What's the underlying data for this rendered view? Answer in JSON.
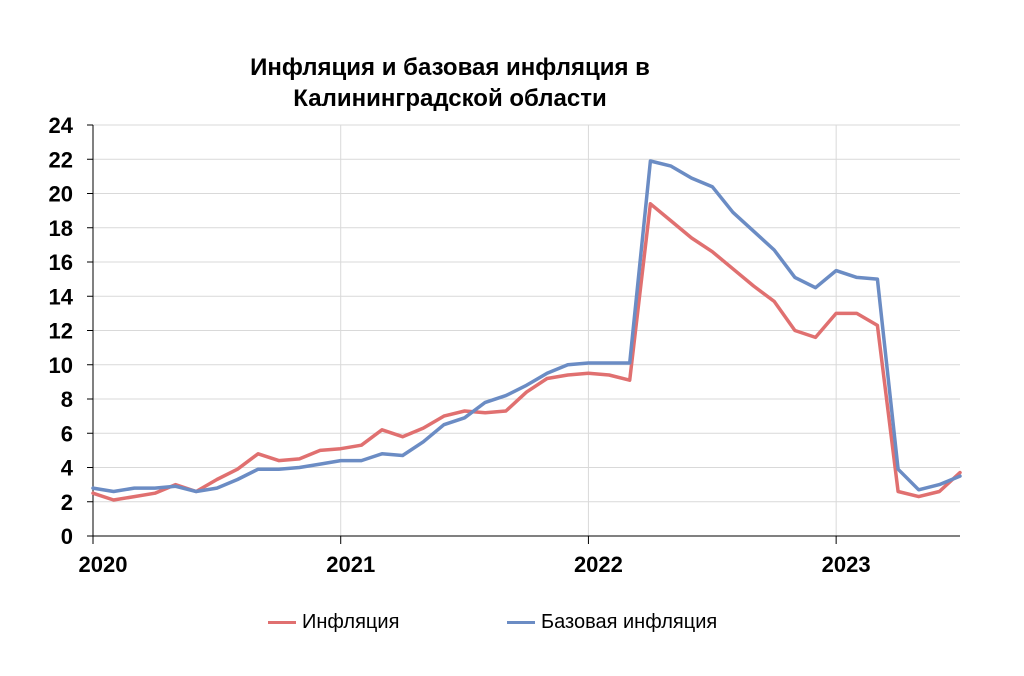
{
  "chart_data": {
    "type": "line",
    "title_lines": [
      "Инфляция и базовая инфляция в",
      "Калининградской области"
    ],
    "xlabel": "",
    "ylabel": "",
    "ylim": [
      0,
      24
    ],
    "y_ticks": [
      0,
      2,
      4,
      6,
      8,
      10,
      12,
      14,
      16,
      18,
      20,
      22,
      24
    ],
    "x_tick_labels": [
      "2020",
      "2021",
      "2022",
      "2023"
    ],
    "x_range": [
      0,
      42
    ],
    "grid": true,
    "legend_position": "bottom",
    "series": [
      {
        "name": "Инфляция",
        "color": "#e07070",
        "x": [
          0,
          1,
          2,
          3,
          4,
          5,
          6,
          7,
          8,
          9,
          10,
          11,
          12,
          13,
          14,
          15,
          16,
          17,
          18,
          19,
          20,
          21,
          22,
          23,
          24,
          25,
          26,
          27,
          28,
          29,
          30,
          31,
          32,
          33,
          34,
          35,
          36,
          37,
          38,
          39,
          40,
          41,
          42
        ],
        "values": [
          2.5,
          2.1,
          2.3,
          2.5,
          3.0,
          2.6,
          3.3,
          3.9,
          4.8,
          4.4,
          4.5,
          5.0,
          5.1,
          5.3,
          6.2,
          5.8,
          6.3,
          7.0,
          7.3,
          7.2,
          7.3,
          8.4,
          9.2,
          9.4,
          9.5,
          9.4,
          9.1,
          19.4,
          18.4,
          17.4,
          16.6,
          15.6,
          14.6,
          13.7,
          12.0,
          11.6,
          13.0,
          13.0,
          12.3,
          2.6,
          2.3,
          2.6,
          3.7
        ]
      },
      {
        "name": "Базовая инфляция",
        "color": "#6b8cc4",
        "x": [
          0,
          1,
          2,
          3,
          4,
          5,
          6,
          7,
          8,
          9,
          10,
          11,
          12,
          13,
          14,
          15,
          16,
          17,
          18,
          19,
          20,
          21,
          22,
          23,
          24,
          25,
          26,
          27,
          28,
          29,
          30,
          31,
          32,
          33,
          34,
          35,
          36,
          37,
          38,
          39,
          40,
          41,
          42
        ],
        "values": [
          2.8,
          2.6,
          2.8,
          2.8,
          2.9,
          2.6,
          2.8,
          3.3,
          3.9,
          3.9,
          4.0,
          4.2,
          4.4,
          4.4,
          4.8,
          4.7,
          5.5,
          6.5,
          6.9,
          7.8,
          8.2,
          8.8,
          9.5,
          10.0,
          10.1,
          10.1,
          10.1,
          21.9,
          21.6,
          20.9,
          20.4,
          18.9,
          17.8,
          16.7,
          15.1,
          14.5,
          15.5,
          15.1,
          15.0,
          3.9,
          2.7,
          3.0,
          3.5
        ]
      }
    ]
  }
}
